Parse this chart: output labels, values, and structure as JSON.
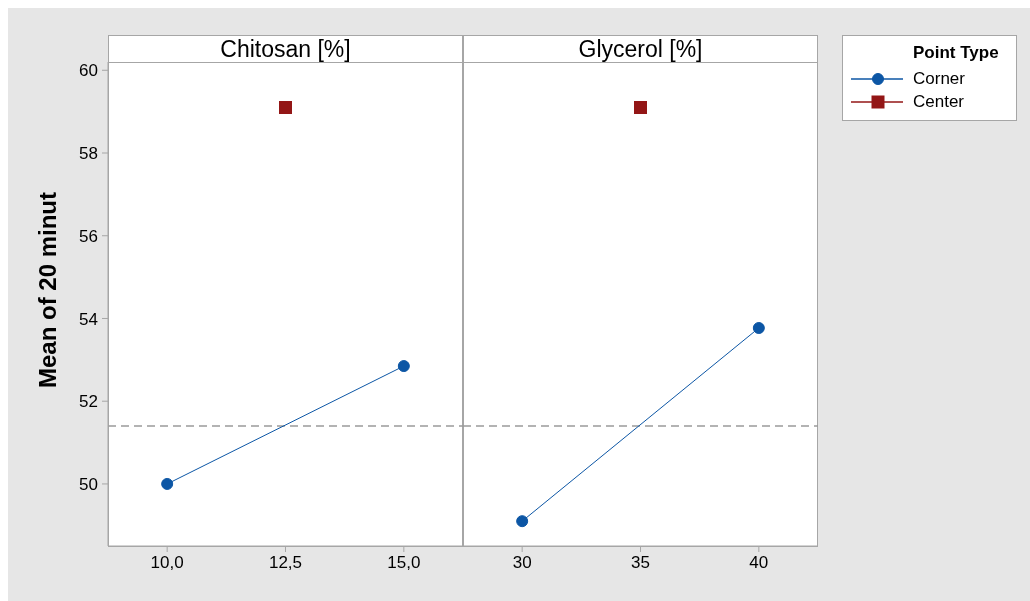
{
  "chart_data": [
    {
      "type": "line",
      "title": "Chitosan [%]",
      "ylabel": "Mean of 20 minut",
      "xlim": [
        8.75,
        16.25
      ],
      "xticks": [
        {
          "value": 10,
          "label": "10,0"
        },
        {
          "value": 12.5,
          "label": "12,5"
        },
        {
          "value": 15,
          "label": "15,0"
        }
      ],
      "ylim": [
        48.5,
        60.2
      ],
      "yticks": [
        50,
        52,
        54,
        56,
        58,
        60
      ],
      "series": [
        {
          "color": "#0c56a5",
          "x": [
            10,
            15
          ],
          "values": [
            50.0,
            52.85
          ],
          "marker": "circle"
        },
        {
          "color": "#931616",
          "x": [
            12.5
          ],
          "values": [
            59.1
          ],
          "marker": "square"
        }
      ],
      "ref_lines": [
        {
          "axis": "y",
          "value": 51.4,
          "color": "#9a9a9a",
          "line_style": "dashed"
        }
      ]
    },
    {
      "type": "line",
      "title": "Glycerol [%]",
      "xlim": [
        27.5,
        42.5
      ],
      "xticks": [
        30,
        35,
        40
      ],
      "ylim": [
        48.5,
        60.2
      ],
      "yticks": [
        50,
        52,
        54,
        56,
        58,
        60
      ],
      "tick_labels": "x",
      "legend": "top right",
      "legend_title": "Point Type",
      "series": [
        {
          "name": "Corner",
          "color": "#0c56a5",
          "x": [
            30,
            40
          ],
          "values": [
            49.1,
            53.77
          ],
          "marker": "circle"
        },
        {
          "name": "Center",
          "color": "#931616",
          "x": [
            35
          ],
          "values": [
            59.1
          ],
          "marker": "square"
        }
      ],
      "ref_lines": [
        {
          "axis": "y",
          "value": 51.4,
          "color": "#9a9a9a",
          "line_style": "dashed"
        }
      ]
    }
  ]
}
